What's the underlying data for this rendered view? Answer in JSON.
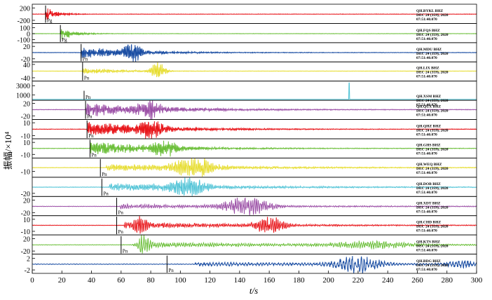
{
  "chart_data": {
    "type": "line",
    "ylabel": "振幅/×10⁴",
    "xlabel": "t/s",
    "xlim": [
      0,
      300
    ],
    "x_ticks": [
      0,
      20,
      40,
      60,
      80,
      100,
      120,
      140,
      160,
      180,
      200,
      220,
      240,
      260,
      280,
      300
    ],
    "phase_label_pg": "Pg",
    "phase_label_pn": "Pn",
    "station_date": "DEC 24 (359), 2020",
    "station_time": "07:51:40.070",
    "colors": {
      "red": "#e8161b",
      "green": "#6cbf3a",
      "blue": "#1b4ea3",
      "yellow": "#e6dc2c",
      "cyan": "#4fc3d6",
      "purple": "#9b4fa6"
    },
    "traces": [
      {
        "station": "QH.BYKL BHZ",
        "color": "#e8161b",
        "ticks": [
          "200",
          "-200"
        ],
        "tick_vals": [
          200,
          -200
        ],
        "ylim": [
          -300,
          320
        ],
        "phase": "Pg",
        "pick": 9,
        "onset": 9,
        "decay": 6,
        "amp": 1.0,
        "period": 0.5,
        "base_amp": 0.02,
        "seed": 1
      },
      {
        "station": "QH.FQS BHZ",
        "color": "#6cbf3a",
        "ticks": [
          "100",
          "0",
          "-100"
        ],
        "tick_vals": [
          100,
          0,
          -100
        ],
        "ylim": [
          -150,
          170
        ],
        "phase": "Pg",
        "pick": 19,
        "onset": 19,
        "decay": 8,
        "amp": 0.9,
        "period": 0.6,
        "base_amp": 0.02,
        "seed": 2
      },
      {
        "station": "QH.MDU BHZ",
        "color": "#1b4ea3",
        "ticks": [
          "20",
          "-20"
        ],
        "tick_vals": [
          20,
          -20
        ],
        "ylim": [
          -30,
          32
        ],
        "phase": "Pn",
        "pick": 33,
        "onset": 33,
        "decay": 35,
        "amp": 0.65,
        "period": 0.8,
        "base_amp": 0.03,
        "seed": 3,
        "bursts": [
          {
            "t": 68,
            "a": 1.0,
            "w": 6
          }
        ]
      },
      {
        "station": "QH.LIX BHZ",
        "color": "#e6dc2c",
        "ticks": [
          "40",
          "-40"
        ],
        "tick_vals": [
          40,
          -40
        ],
        "ylim": [
          -60,
          55
        ],
        "phase": "Pn",
        "pick": 34,
        "onset": 34,
        "decay": 25,
        "amp": 0.35,
        "period": 1.0,
        "base_amp": 0.02,
        "seed": 4,
        "bursts": [
          {
            "t": 85,
            "a": 1.0,
            "w": 5
          }
        ]
      },
      {
        "station": "QH.XSM BHZ",
        "color": "#4fc3d6",
        "ticks": [
          "3000",
          "1000"
        ],
        "tick_vals": [
          3000,
          1000
        ],
        "ylim": [
          -200,
          4000
        ],
        "phase": "Pn",
        "pick": 35,
        "onset": 35,
        "decay": 5,
        "amp": 0.0,
        "period": 1.0,
        "base_amp": 0.0,
        "seed": 5,
        "spike": 214
      },
      {
        "station": "QH.QUX BHZ",
        "color": "#9b4fa6",
        "ticks": [
          "20",
          "-20"
        ],
        "tick_vals": [
          20,
          -20
        ],
        "ylim": [
          -32,
          30
        ],
        "phase": "Pn",
        "pick": 36,
        "onset": 36,
        "decay": 50,
        "amp": 0.8,
        "period": 0.9,
        "base_amp": 0.03,
        "seed": 6,
        "bursts": [
          {
            "t": 80,
            "a": 0.9,
            "w": 8
          }
        ]
      },
      {
        "station": "QH.QHZ BHZ",
        "color": "#e8161b",
        "ticks": [
          "10",
          "-10"
        ],
        "tick_vals": [
          10,
          -10
        ],
        "ylim": [
          -15,
          15
        ],
        "phase": "Pn",
        "pick": 37,
        "onset": 37,
        "decay": 45,
        "amp": 0.85,
        "period": 0.8,
        "base_amp": 0.03,
        "seed": 7,
        "bursts": [
          {
            "t": 80,
            "a": 1.0,
            "w": 8
          }
        ]
      },
      {
        "station": "QH.GHS BHZ",
        "color": "#6cbf3a",
        "ticks": [
          "10",
          "-10"
        ],
        "tick_vals": [
          10,
          -10
        ],
        "ylim": [
          -16,
          16
        ],
        "phase": "Pn",
        "pick": 39,
        "onset": 39,
        "decay": 45,
        "amp": 0.8,
        "period": 0.8,
        "base_amp": 0.03,
        "seed": 8,
        "bursts": [
          {
            "t": 90,
            "a": 0.8,
            "w": 8
          }
        ]
      },
      {
        "station": "QH.WEQ BHZ",
        "color": "#e6dc2c",
        "ticks": [
          "-10"
        ],
        "tick_vals": [
          -10
        ],
        "ylim": [
          -25,
          25
        ],
        "phase": "Pn",
        "pick": 46,
        "onset": 50,
        "decay": 80,
        "amp": 0.4,
        "period": 1.1,
        "base_amp": 0.03,
        "seed": 9,
        "bursts": [
          {
            "t": 110,
            "a": 1.0,
            "w": 15
          }
        ]
      },
      {
        "station": "QH.DOB BHZ",
        "color": "#4fc3d6",
        "ticks": [
          "-20"
        ],
        "tick_vals": [
          -20
        ],
        "ylim": [
          -30,
          32
        ],
        "phase": "Pn",
        "pick": 47,
        "onset": 52,
        "decay": 80,
        "amp": 0.45,
        "period": 1.1,
        "base_amp": 0.03,
        "seed": 10,
        "bursts": [
          {
            "t": 105,
            "a": 0.9,
            "w": 12
          }
        ]
      },
      {
        "station": "QH.XDT BHZ",
        "color": "#9b4fa6",
        "ticks": [
          "20",
          "-20"
        ],
        "tick_vals": [
          20,
          -20
        ],
        "ylim": [
          -30,
          32
        ],
        "phase": "Pn",
        "pick": 57,
        "onset": 59,
        "decay": 100,
        "amp": 0.25,
        "period": 1.3,
        "base_amp": 0.03,
        "seed": 11,
        "bursts": [
          {
            "t": 145,
            "a": 1.0,
            "w": 15
          }
        ]
      },
      {
        "station": "QH.CHD BHZ",
        "color": "#e8161b",
        "ticks": [
          "10",
          "-10"
        ],
        "tick_vals": [
          10,
          -10
        ],
        "ylim": [
          -16,
          16
        ],
        "phase": "Pn",
        "pick": 57,
        "onset": 62,
        "decay": 90,
        "amp": 0.35,
        "period": 1.2,
        "base_amp": 0.03,
        "seed": 12,
        "bursts": [
          {
            "t": 73,
            "a": 0.9,
            "w": 4
          },
          {
            "t": 160,
            "a": 0.9,
            "w": 10
          }
        ]
      },
      {
        "station": "QH.KTS BHZ",
        "color": "#6cbf3a",
        "ticks": [
          "20",
          "-20"
        ],
        "tick_vals": [
          20,
          -20
        ],
        "ylim": [
          -30,
          32
        ],
        "phase": "Pn",
        "pick": 60,
        "onset": 72,
        "decay": 120,
        "amp": 0.3,
        "period": 1.5,
        "base_amp": 0.03,
        "seed": 13,
        "bursts": [
          {
            "t": 75,
            "a": 1.0,
            "w": 4
          },
          {
            "t": 230,
            "a": 0.4,
            "w": 25
          }
        ]
      },
      {
        "station": "QH.BDG BHZ",
        "color": "#1b4ea3",
        "ticks": [
          "2",
          "-2"
        ],
        "tick_vals": [
          2,
          -2
        ],
        "ylim": [
          -3.2,
          3.5
        ],
        "phase": "Pn",
        "pick": 91,
        "onset": 110,
        "decay": 150,
        "amp": 0.2,
        "period": 2.0,
        "base_amp": 0.04,
        "seed": 14,
        "bursts": [
          {
            "t": 220,
            "a": 1.0,
            "w": 15
          },
          {
            "t": 290,
            "a": 0.4,
            "w": 10
          }
        ]
      }
    ]
  }
}
